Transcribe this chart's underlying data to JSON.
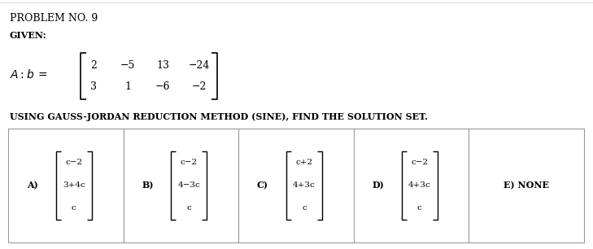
{
  "title": "PROBLEM NO. 9",
  "given_label": "GIVEN:",
  "matrix_row1": [
    "2",
    "−5",
    "13",
    "−24"
  ],
  "matrix_row2": [
    "3",
    "1",
    "−6",
    "−2"
  ],
  "instruction": "USING GAUSS-JORDAN REDUCTION METHOD (SINE), FIND THE SOLUTION SET.",
  "options": [
    {
      "label": "A)",
      "vec": [
        "c−2",
        "3+4c",
        "c"
      ]
    },
    {
      "label": "B)",
      "vec": [
        "c−2",
        "4−3c",
        "c"
      ]
    },
    {
      "label": "C)",
      "vec": [
        "c+2",
        "4+3c",
        "c"
      ]
    },
    {
      "label": "D)",
      "vec": [
        "c−2",
        "4+3c",
        "c"
      ]
    },
    {
      "label": "E) NONE",
      "vec": null
    }
  ],
  "bg_color": "#ffffff",
  "text_color": "#000000",
  "font_size_title": 9,
  "font_size_body": 8,
  "font_size_matrix": 9,
  "font_size_vec": 7.5
}
